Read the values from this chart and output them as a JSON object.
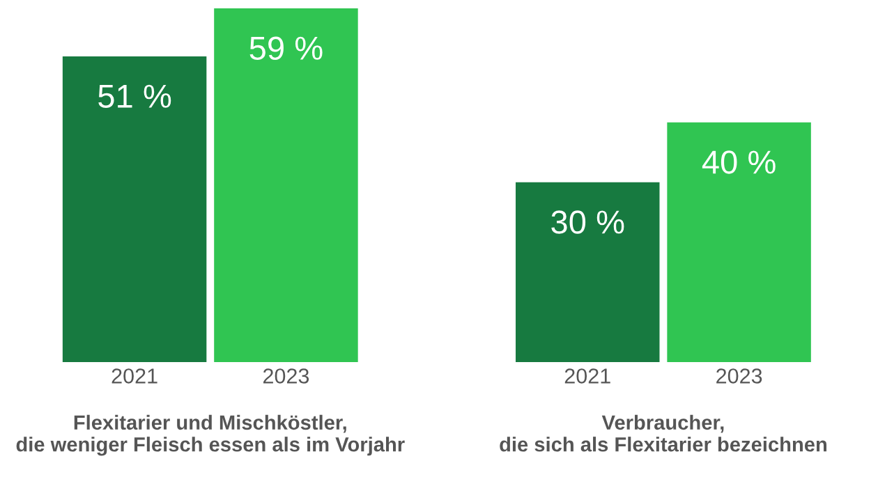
{
  "chart_data": [
    {
      "type": "bar",
      "categories": [
        "2021",
        "2023"
      ],
      "values": [
        51,
        59
      ],
      "value_labels": [
        "51 %",
        "59 %"
      ],
      "colors": [
        "#177a40",
        "#30c552"
      ],
      "xlabel": "Flexitarier und Mischköstler,\ndie weniger Fleisch essen als im Vorjahr",
      "tick_labels": "x",
      "grid": false,
      "legend": false
    },
    {
      "type": "bar",
      "categories": [
        "2021",
        "2023"
      ],
      "values": [
        30,
        40
      ],
      "value_labels": [
        "30 %",
        "40 %"
      ],
      "colors": [
        "#177a40",
        "#30c552"
      ],
      "xlabel": "Verbraucher,\ndie sich als Flexitarier bezeichnen",
      "tick_labels": "x",
      "grid": false,
      "legend": false
    }
  ]
}
